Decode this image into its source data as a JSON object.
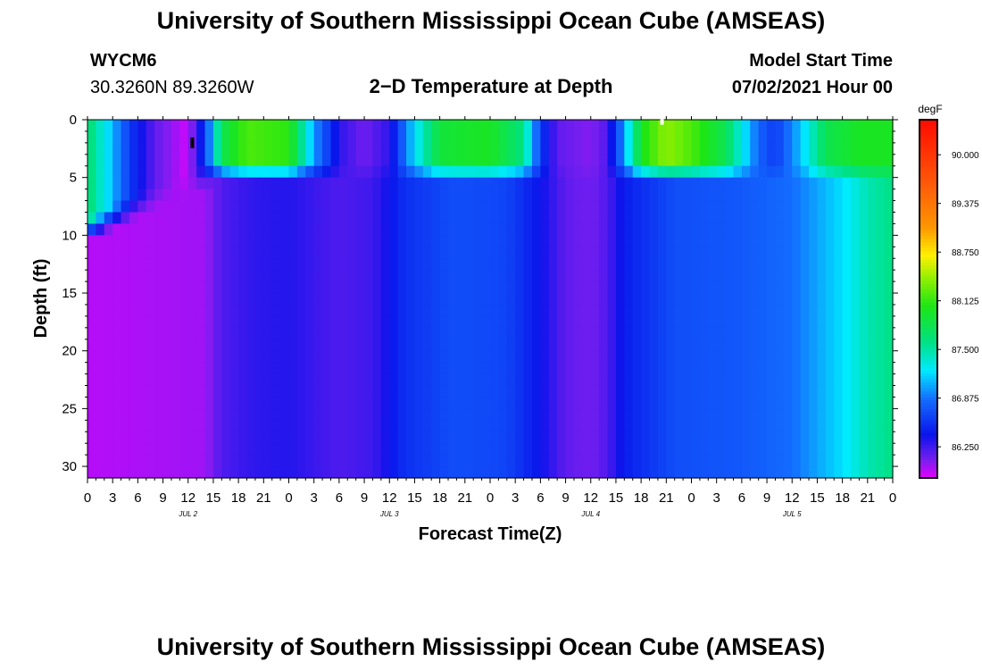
{
  "header": {
    "title": "University of Southern Mississippi Ocean Cube (AMSEAS)",
    "station_id": "WYCM6",
    "coords": "30.3260N  89.3260W",
    "plot_title": "2−D Temperature at Depth",
    "model_label": "Model Start Time",
    "model_time": "07/02/2021 Hour 00"
  },
  "footer": {
    "title": "University of Southern Mississippi Ocean Cube (AMSEAS)"
  },
  "chart_data": {
    "type": "heatmap",
    "title": "2−D Temperature at Depth",
    "xlabel": "Forecast Time(Z)",
    "ylabel": "Depth (ft)",
    "xlim": [
      0,
      96
    ],
    "ylim": [
      0,
      31
    ],
    "x_tick_labels": [
      "0",
      "3",
      "6",
      "9",
      "12",
      "15",
      "18",
      "21",
      "0",
      "3",
      "6",
      "9",
      "12",
      "15",
      "18",
      "21",
      "0",
      "3",
      "6",
      "9",
      "12",
      "15",
      "18",
      "21",
      "0",
      "3",
      "6",
      "9",
      "12",
      "15",
      "18",
      "21",
      "0"
    ],
    "y_ticks": [
      0,
      5,
      10,
      15,
      20,
      25,
      30
    ],
    "day_labels": [
      {
        "hour": 12,
        "label": "JUL 2"
      },
      {
        "hour": 36,
        "label": "JUL 3"
      },
      {
        "hour": 60,
        "label": "JUL 4"
      },
      {
        "hour": 84,
        "label": "JUL 5"
      }
    ],
    "colorbar": {
      "unit": "degF",
      "min": 85.85,
      "max": 90.45,
      "ticks": [
        "90.000",
        "89.375",
        "88.750",
        "88.125",
        "87.500",
        "86.875",
        "86.250"
      ]
    },
    "mixed_layer_depth_ft": [
      {
        "hour": 0,
        "depth": 10
      },
      {
        "hour": 15,
        "depth": 5
      },
      {
        "hour": 96,
        "depth": 5
      }
    ],
    "deep_temperature_series_degF": [
      {
        "hour": 0,
        "value": 85.95
      },
      {
        "hour": 14,
        "value": 86.0
      },
      {
        "hour": 16,
        "value": 86.2
      },
      {
        "hour": 20,
        "value": 86.3
      },
      {
        "hour": 24,
        "value": 86.33
      },
      {
        "hour": 30,
        "value": 86.2
      },
      {
        "hour": 34,
        "value": 86.25
      },
      {
        "hour": 38,
        "value": 86.55
      },
      {
        "hour": 44,
        "value": 86.7
      },
      {
        "hour": 50,
        "value": 86.65
      },
      {
        "hour": 54,
        "value": 86.4
      },
      {
        "hour": 57,
        "value": 86.15
      },
      {
        "hour": 60,
        "value": 86.1
      },
      {
        "hour": 62,
        "value": 86.2
      },
      {
        "hour": 64,
        "value": 86.45
      },
      {
        "hour": 70,
        "value": 86.7
      },
      {
        "hour": 78,
        "value": 86.75
      },
      {
        "hour": 84,
        "value": 86.85
      },
      {
        "hour": 90,
        "value": 87.2
      },
      {
        "hour": 93,
        "value": 87.45
      },
      {
        "hour": 96,
        "value": 87.6
      }
    ],
    "surface_temperature_series_degF": [
      {
        "hour": 0,
        "value": 87.7
      },
      {
        "hour": 2,
        "value": 87.3
      },
      {
        "hour": 5,
        "value": 86.6
      },
      {
        "hour": 8,
        "value": 86.15
      },
      {
        "hour": 12,
        "value": 85.9
      },
      {
        "hour": 14,
        "value": 86.6
      },
      {
        "hour": 16,
        "value": 87.8
      },
      {
        "hour": 19,
        "value": 88.2
      },
      {
        "hour": 24,
        "value": 88.1
      },
      {
        "hour": 27,
        "value": 87.0
      },
      {
        "hour": 30,
        "value": 86.3
      },
      {
        "hour": 33,
        "value": 86.1
      },
      {
        "hour": 36,
        "value": 86.3
      },
      {
        "hour": 39,
        "value": 87.2
      },
      {
        "hour": 42,
        "value": 87.9
      },
      {
        "hour": 48,
        "value": 88.0
      },
      {
        "hour": 52,
        "value": 87.6
      },
      {
        "hour": 54,
        "value": 86.6
      },
      {
        "hour": 56,
        "value": 86.15
      },
      {
        "hour": 60,
        "value": 86.05
      },
      {
        "hour": 62,
        "value": 86.2
      },
      {
        "hour": 64,
        "value": 87.0
      },
      {
        "hour": 66,
        "value": 88.0
      },
      {
        "hour": 69,
        "value": 88.4
      },
      {
        "hour": 72,
        "value": 88.2
      },
      {
        "hour": 76,
        "value": 87.8
      },
      {
        "hour": 78,
        "value": 87.3
      },
      {
        "hour": 80,
        "value": 86.8
      },
      {
        "hour": 82,
        "value": 86.6
      },
      {
        "hour": 85,
        "value": 87.1
      },
      {
        "hour": 88,
        "value": 87.8
      },
      {
        "hour": 92,
        "value": 88.0
      },
      {
        "hour": 96,
        "value": 88.0
      }
    ],
    "markers": [
      {
        "hour": 12.5,
        "depth": 2.0,
        "color": "#000000"
      },
      {
        "hour": 68.5,
        "depth": 0.2,
        "color": "#ffffff"
      }
    ]
  }
}
